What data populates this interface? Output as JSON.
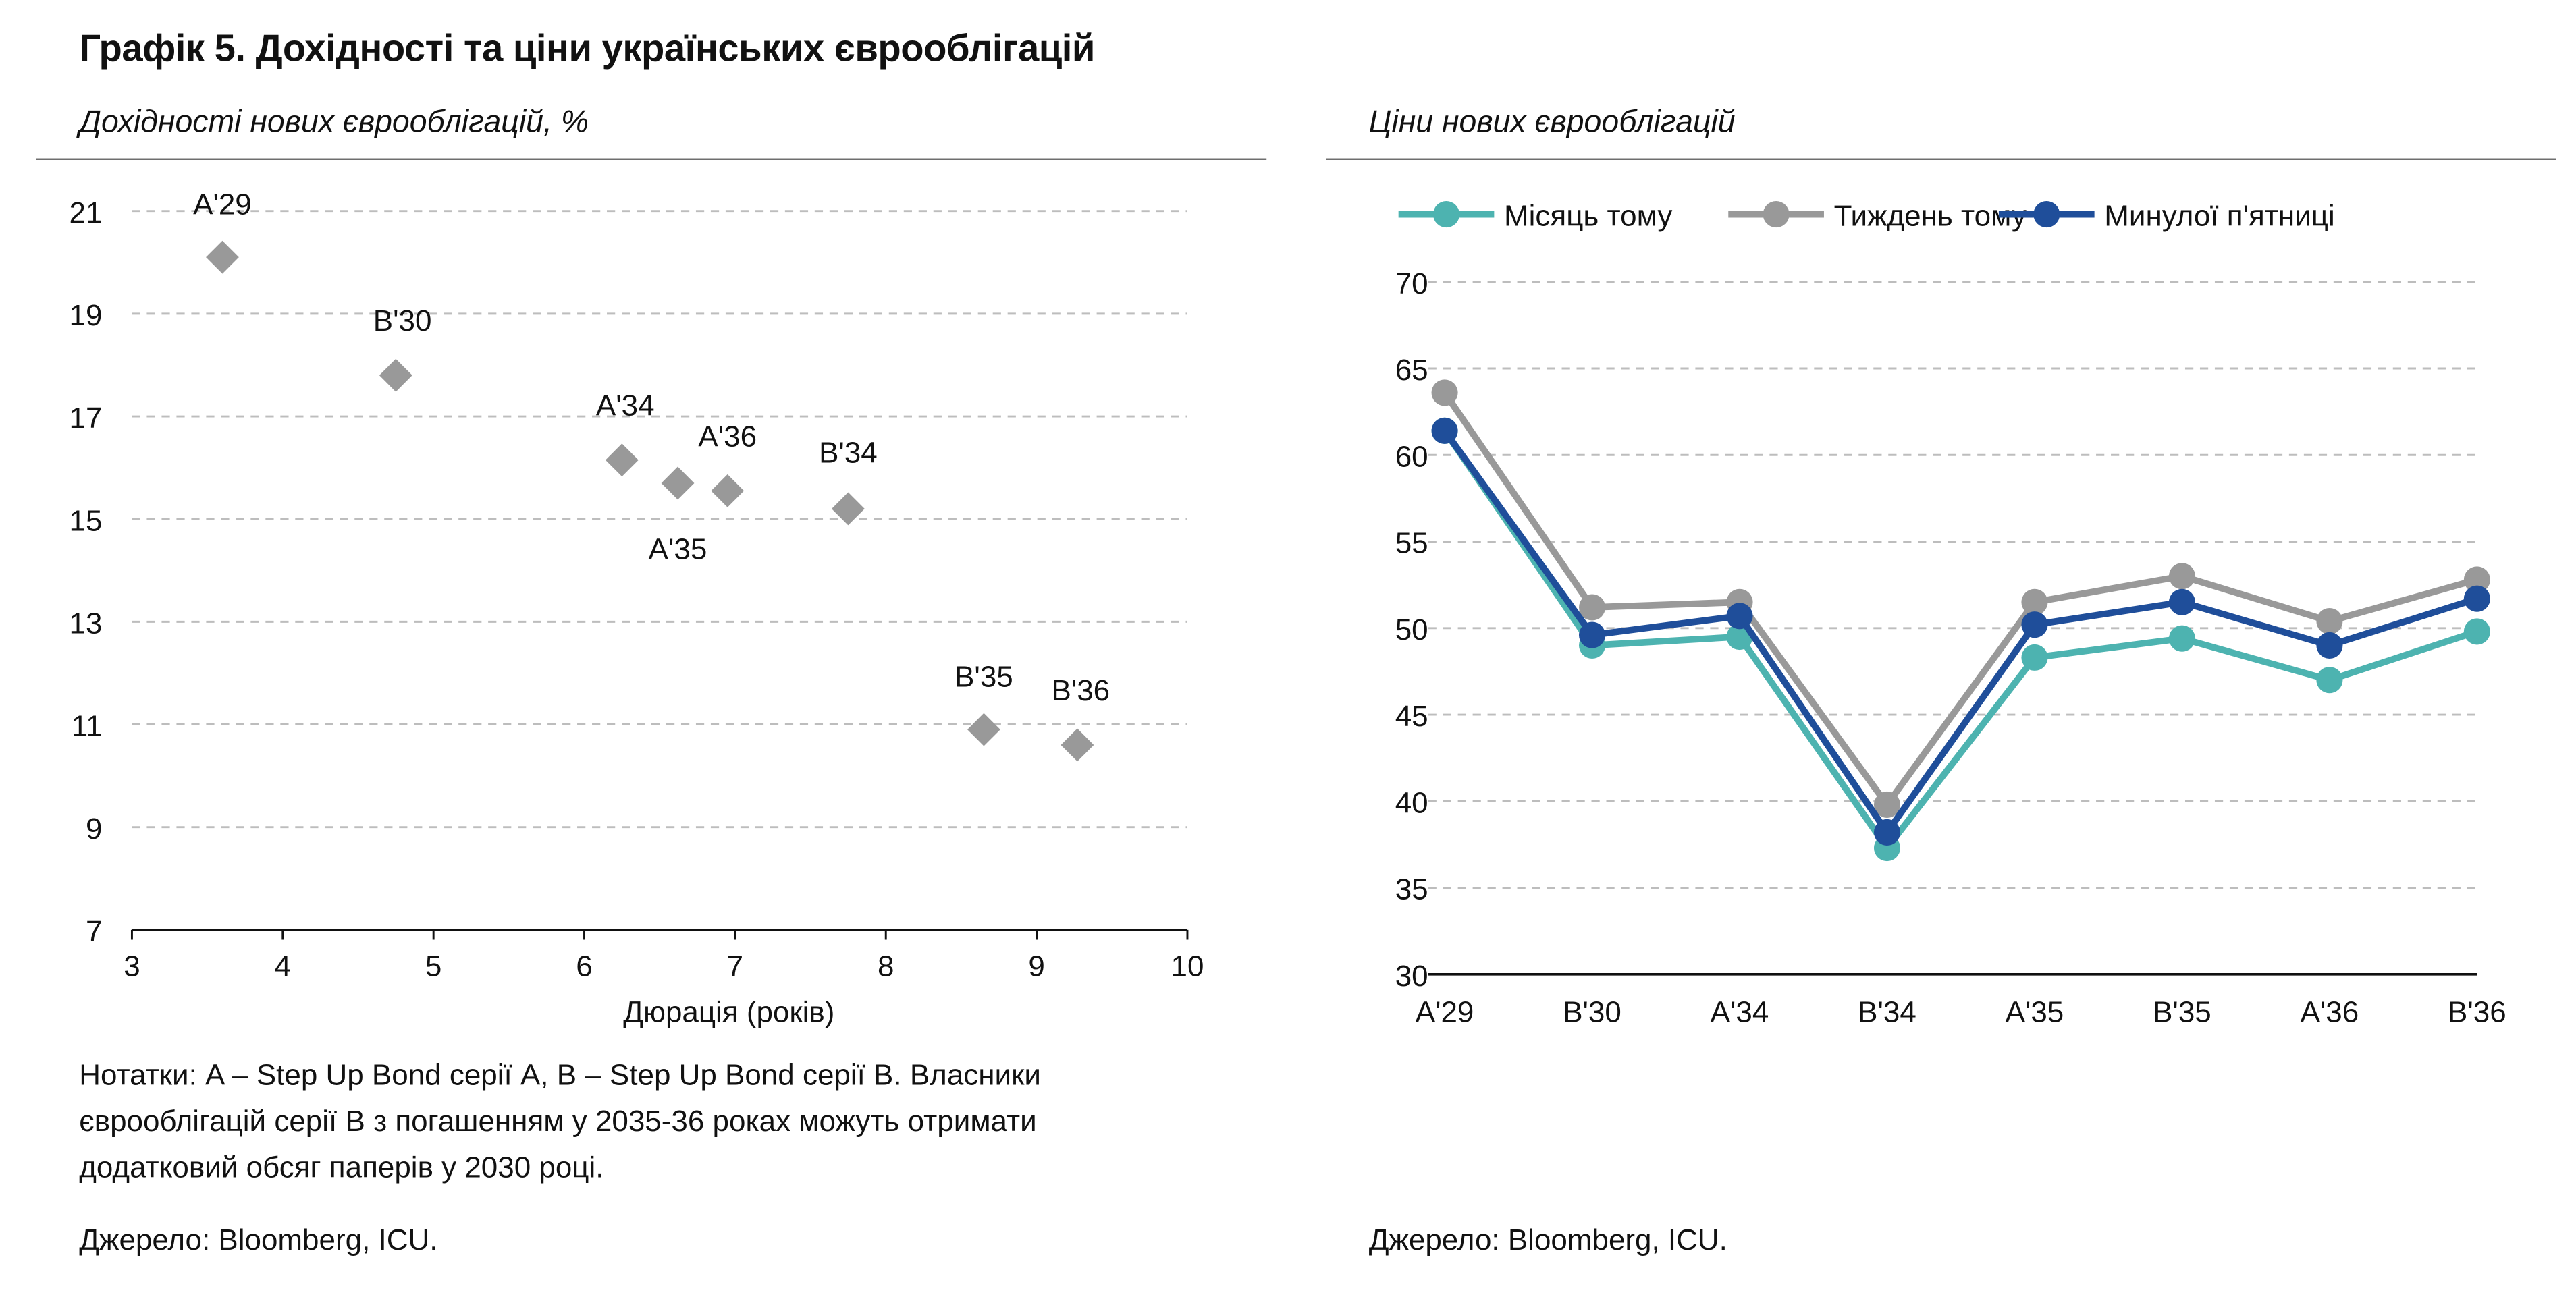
{
  "title": "Графік 5. Дохідності та ціни українських єврооблігацій",
  "left": {
    "subtitle": "Дохідності нових єврооблігацій, %",
    "note": "Нотатки: A – Step Up Bond серії А, B – Step Up Bond серії В. Власники єврооблігацій серії В з погашенням у 2035-36 роках можуть отримати додатковий обсяг паперів у 2030 році.",
    "source": "Джерело: Bloomberg, ICU."
  },
  "right": {
    "subtitle": "Ціни нових єврооблігацій",
    "source": "Джерело: Bloomberg, ICU."
  },
  "chart_data": [
    {
      "type": "scatter",
      "title": "Дохідності нових єврооблігацій, %",
      "xlabel": "Дюрація (років)",
      "ylabel": "",
      "xlim": [
        3,
        10
      ],
      "ylim": [
        7,
        21
      ],
      "xticks": [
        "3",
        "4",
        "5",
        "6",
        "7",
        "8",
        "9",
        "10"
      ],
      "yticks": [
        "7",
        "9",
        "11",
        "13",
        "15",
        "17",
        "19",
        "21"
      ],
      "grid": "horizontal dashed",
      "marker": "diamond",
      "color": "#999999",
      "points": [
        {
          "label": "A'29",
          "x": 3.6,
          "y": 20.1
        },
        {
          "label": "B'30",
          "x": 4.75,
          "y": 17.8
        },
        {
          "label": "A'34",
          "x": 6.25,
          "y": 16.15
        },
        {
          "label": "A'35",
          "x": 6.62,
          "y": 15.7
        },
        {
          "label": "A'36",
          "x": 6.95,
          "y": 15.55
        },
        {
          "label": "B'34",
          "x": 7.75,
          "y": 15.2
        },
        {
          "label": "B'35",
          "x": 8.65,
          "y": 10.9
        },
        {
          "label": "B'36",
          "x": 9.27,
          "y": 10.6
        }
      ]
    },
    {
      "type": "line",
      "title": "Ціни нових єврооблігацій",
      "categories": [
        "A'29",
        "B'30",
        "A'34",
        "B'34",
        "A'35",
        "B'35",
        "A'36",
        "B'36"
      ],
      "ylim": [
        30,
        70
      ],
      "yticks": [
        "30",
        "35",
        "40",
        "45",
        "50",
        "55",
        "60",
        "65",
        "70"
      ],
      "grid": "horizontal dashed",
      "legend": "top",
      "series": [
        {
          "name": "Місяць тому",
          "color": "#4db3b0",
          "values": [
            61.4,
            49.0,
            49.5,
            37.3,
            48.3,
            49.4,
            47.0,
            49.8
          ]
        },
        {
          "name": "Тиждень тому",
          "color": "#999999",
          "values": [
            63.6,
            51.2,
            51.5,
            39.8,
            51.5,
            53.0,
            50.4,
            52.8
          ]
        },
        {
          "name": "Минулої п'ятниці",
          "color": "#1f4e9a",
          "values": [
            61.4,
            49.6,
            50.7,
            38.2,
            50.2,
            51.5,
            49.0,
            51.7
          ]
        }
      ]
    }
  ]
}
